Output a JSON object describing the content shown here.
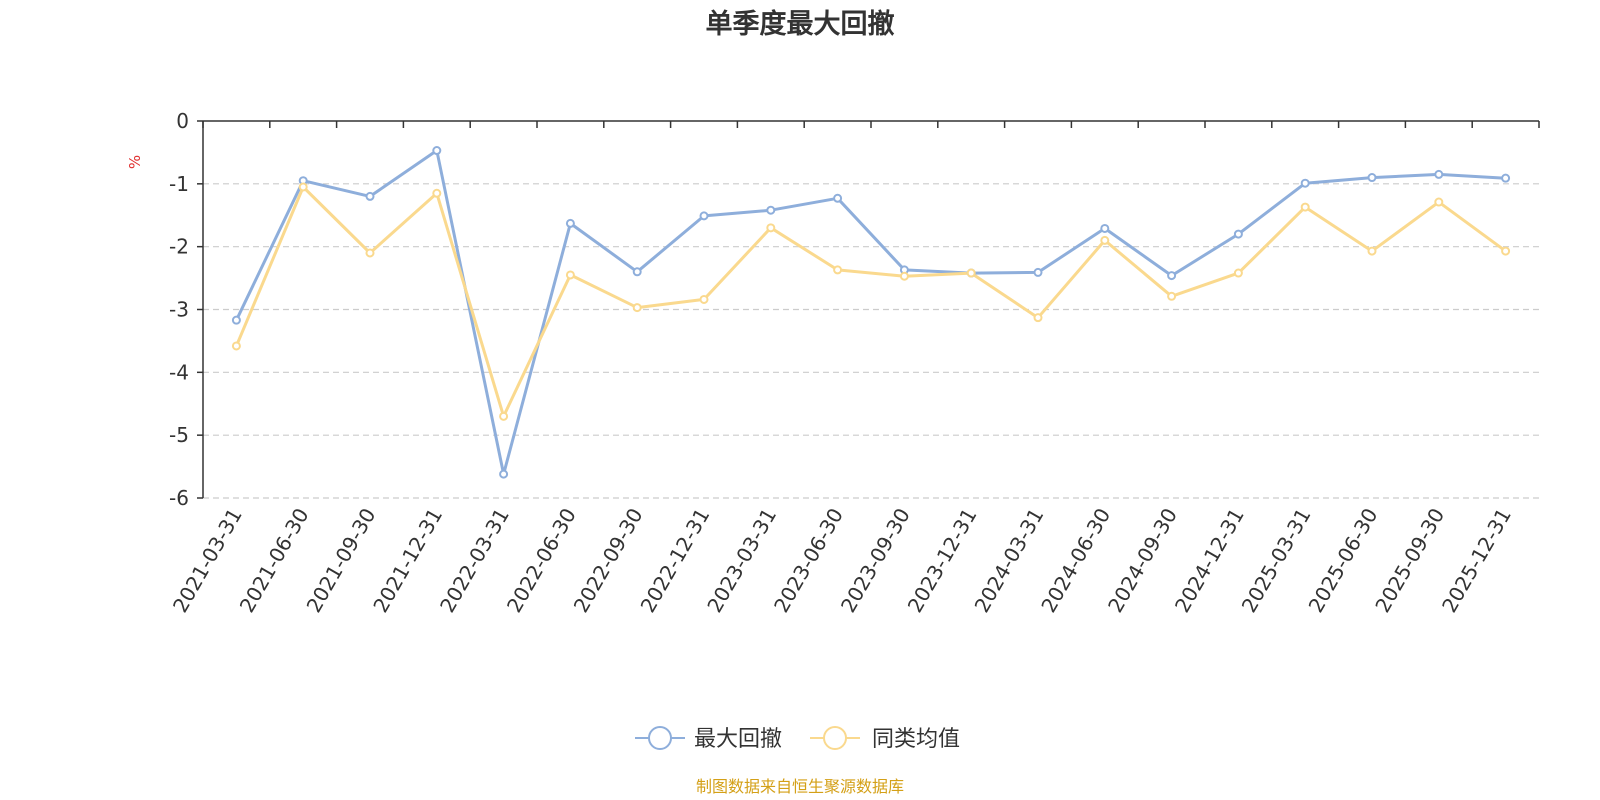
{
  "chart_data": {
    "type": "line",
    "title": "单季度最大回撤",
    "ylabel": "%",
    "xlabel": "",
    "ylim": [
      -6,
      0
    ],
    "yticks": [
      0,
      -1,
      -2,
      -3,
      -4,
      -5,
      -6
    ],
    "grid": true,
    "legend_position": "bottom-center",
    "categories": [
      "2021-03-31",
      "2021-06-30",
      "2021-09-30",
      "2021-12-31",
      "2022-03-31",
      "2022-06-30",
      "2022-09-30",
      "2022-12-31",
      "2023-03-31",
      "2023-06-30",
      "2023-09-30",
      "2023-12-31",
      "2024-03-31",
      "2024-06-30",
      "2024-09-30",
      "2024-12-31",
      "2025-03-31",
      "2025-06-30",
      "2025-09-30",
      "2025-12-31"
    ],
    "series": [
      {
        "name": "最大回撤",
        "color": "#8eaedb",
        "values": [
          -3.17,
          -0.95,
          -1.2,
          -0.47,
          -5.62,
          -1.63,
          -2.4,
          -1.51,
          -1.42,
          -1.23,
          -2.37,
          -2.42,
          -2.41,
          -1.71,
          -2.46,
          -1.8,
          -0.99,
          -0.9,
          -0.85,
          -0.91
        ]
      },
      {
        "name": "同类均值",
        "color": "#fad98e",
        "values": [
          -3.58,
          -1.05,
          -2.1,
          -1.15,
          -4.7,
          -2.45,
          -2.97,
          -2.84,
          -1.7,
          -2.37,
          -2.47,
          -2.42,
          -3.13,
          -1.9,
          -2.79,
          -2.42,
          -1.37,
          -2.07,
          -1.29,
          -2.07
        ]
      }
    ]
  },
  "source_text": "制图数据来自恒生聚源数据库",
  "colors": {
    "axis": "#333333",
    "grid": "#cccccc",
    "unit": "#e03030",
    "source": "#d4a017",
    "title": "#333333"
  }
}
